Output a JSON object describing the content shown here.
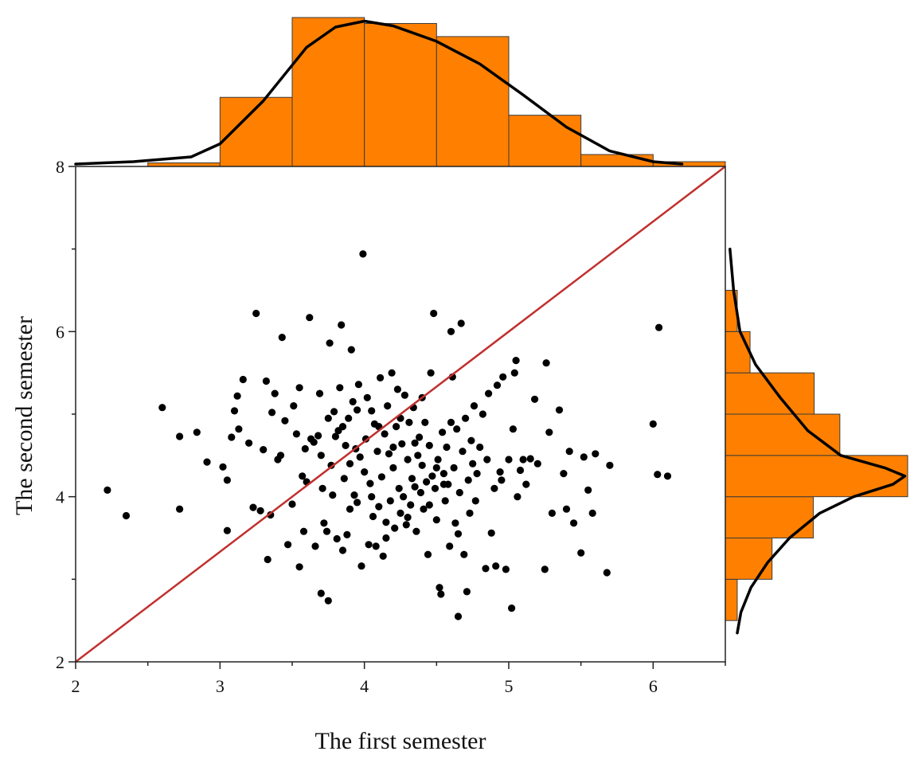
{
  "chart_data": {
    "type": "scatter",
    "title": "",
    "xlabel": "The first semester",
    "ylabel": "The second semester",
    "xlim": [
      2,
      6.5
    ],
    "ylim": [
      2,
      8
    ],
    "x_ticks": [
      2,
      3,
      4,
      5,
      6
    ],
    "y_ticks": [
      2,
      4,
      6,
      8
    ],
    "grid": false,
    "colors": {
      "points": "#000000",
      "reference_line": "#c0302e",
      "histogram_fill": "#ff8000",
      "histogram_edge": "#3a3a3a",
      "density_line": "#000000"
    },
    "reference_line": {
      "from": [
        2,
        2
      ],
      "to": [
        6.5,
        8
      ]
    },
    "points": [
      [
        2.22,
        4.08
      ],
      [
        2.35,
        3.77
      ],
      [
        2.6,
        5.08
      ],
      [
        2.72,
        4.73
      ],
      [
        2.72,
        3.85
      ],
      [
        2.84,
        4.78
      ],
      [
        2.91,
        4.42
      ],
      [
        3.02,
        4.36
      ],
      [
        3.05,
        4.2
      ],
      [
        3.05,
        3.59
      ],
      [
        3.08,
        4.72
      ],
      [
        3.1,
        5.04
      ],
      [
        3.12,
        5.22
      ],
      [
        3.13,
        4.82
      ],
      [
        3.16,
        5.42
      ],
      [
        3.2,
        4.65
      ],
      [
        3.23,
        3.87
      ],
      [
        3.25,
        6.22
      ],
      [
        3.28,
        3.83
      ],
      [
        3.3,
        4.57
      ],
      [
        3.32,
        5.4
      ],
      [
        3.33,
        3.24
      ],
      [
        3.35,
        3.78
      ],
      [
        3.36,
        5.02
      ],
      [
        3.38,
        5.25
      ],
      [
        3.4,
        4.45
      ],
      [
        3.42,
        4.5
      ],
      [
        3.43,
        5.93
      ],
      [
        3.45,
        4.92
      ],
      [
        3.47,
        3.42
      ],
      [
        3.5,
        3.91
      ],
      [
        3.51,
        5.1
      ],
      [
        3.53,
        4.76
      ],
      [
        3.55,
        5.32
      ],
      [
        3.57,
        4.25
      ],
      [
        3.58,
        3.58
      ],
      [
        3.59,
        4.58
      ],
      [
        3.6,
        4.18
      ],
      [
        3.62,
        6.17
      ],
      [
        3.63,
        4.7
      ],
      [
        3.65,
        4.66
      ],
      [
        3.66,
        3.4
      ],
      [
        3.68,
        4.74
      ],
      [
        3.69,
        5.25
      ],
      [
        3.7,
        2.83
      ],
      [
        3.71,
        4.1
      ],
      [
        3.72,
        3.68
      ],
      [
        3.74,
        3.58
      ],
      [
        3.75,
        2.74
      ],
      [
        3.76,
        5.86
      ],
      [
        3.77,
        4.38
      ],
      [
        3.78,
        4.02
      ],
      [
        3.79,
        5.03
      ],
      [
        3.8,
        4.73
      ],
      [
        3.81,
        3.49
      ],
      [
        3.82,
        4.8
      ],
      [
        3.83,
        5.32
      ],
      [
        3.84,
        6.08
      ],
      [
        3.85,
        3.35
      ],
      [
        3.86,
        4.22
      ],
      [
        3.87,
        4.62
      ],
      [
        3.88,
        3.54
      ],
      [
        3.89,
        4.95
      ],
      [
        3.9,
        4.4
      ],
      [
        3.91,
        5.78
      ],
      [
        3.92,
        5.15
      ],
      [
        3.93,
        4.02
      ],
      [
        3.94,
        4.58
      ],
      [
        3.95,
        3.93
      ],
      [
        3.96,
        5.36
      ],
      [
        3.97,
        4.48
      ],
      [
        3.98,
        3.16
      ],
      [
        3.99,
        6.94
      ],
      [
        4.0,
        4.3
      ],
      [
        4.01,
        4.7
      ],
      [
        4.02,
        5.2
      ],
      [
        4.03,
        3.42
      ],
      [
        4.04,
        4.16
      ],
      [
        4.05,
        5.04
      ],
      [
        4.06,
        3.76
      ],
      [
        4.07,
        4.88
      ],
      [
        4.08,
        3.4
      ],
      [
        4.09,
        4.55
      ],
      [
        4.1,
        3.88
      ],
      [
        4.11,
        5.44
      ],
      [
        4.12,
        4.24
      ],
      [
        4.13,
        3.28
      ],
      [
        4.14,
        4.76
      ],
      [
        4.15,
        3.69
      ],
      [
        4.16,
        5.1
      ],
      [
        4.17,
        4.52
      ],
      [
        4.18,
        3.95
      ],
      [
        4.19,
        5.5
      ],
      [
        4.2,
        4.35
      ],
      [
        4.21,
        3.62
      ],
      [
        4.22,
        4.85
      ],
      [
        4.23,
        5.3
      ],
      [
        4.24,
        4.1
      ],
      [
        4.25,
        3.8
      ],
      [
        4.26,
        4.64
      ],
      [
        4.27,
        4.0
      ],
      [
        4.28,
        5.23
      ],
      [
        4.29,
        3.66
      ],
      [
        4.3,
        4.45
      ],
      [
        4.31,
        4.9
      ],
      [
        4.32,
        3.9
      ],
      [
        4.33,
        4.22
      ],
      [
        4.34,
        5.08
      ],
      [
        4.35,
        4.12
      ],
      [
        4.36,
        3.58
      ],
      [
        4.37,
        4.5
      ],
      [
        4.38,
        4.72
      ],
      [
        4.39,
        4.05
      ],
      [
        4.4,
        4.38
      ],
      [
        4.41,
        3.85
      ],
      [
        4.42,
        4.9
      ],
      [
        4.43,
        4.18
      ],
      [
        4.44,
        3.3
      ],
      [
        4.45,
        4.62
      ],
      [
        4.46,
        5.5
      ],
      [
        4.47,
        4.25
      ],
      [
        4.48,
        6.22
      ],
      [
        4.49,
        4.1
      ],
      [
        4.5,
        3.72
      ],
      [
        4.51,
        4.45
      ],
      [
        4.52,
        2.9
      ],
      [
        4.53,
        2.82
      ],
      [
        4.54,
        4.78
      ],
      [
        4.55,
        4.28
      ],
      [
        4.56,
        3.95
      ],
      [
        4.57,
        4.6
      ],
      [
        4.58,
        4.15
      ],
      [
        4.59,
        3.4
      ],
      [
        4.6,
        6.0
      ],
      [
        4.61,
        5.45
      ],
      [
        4.62,
        4.35
      ],
      [
        4.63,
        3.68
      ],
      [
        4.64,
        4.82
      ],
      [
        4.65,
        2.55
      ],
      [
        4.66,
        4.05
      ],
      [
        4.67,
        6.1
      ],
      [
        4.68,
        4.55
      ],
      [
        4.69,
        3.3
      ],
      [
        4.7,
        4.95
      ],
      [
        4.71,
        2.85
      ],
      [
        4.72,
        4.2
      ],
      [
        4.73,
        3.8
      ],
      [
        4.74,
        4.68
      ],
      [
        4.75,
        4.4
      ],
      [
        4.76,
        5.1
      ],
      [
        4.77,
        3.95
      ],
      [
        4.78,
        4.28
      ],
      [
        4.8,
        4.6
      ],
      [
        4.82,
        5.0
      ],
      [
        4.84,
        3.13
      ],
      [
        4.85,
        4.45
      ],
      [
        4.86,
        5.25
      ],
      [
        4.88,
        3.56
      ],
      [
        4.9,
        4.1
      ],
      [
        4.91,
        3.16
      ],
      [
        4.92,
        5.35
      ],
      [
        4.94,
        4.3
      ],
      [
        4.96,
        5.45
      ],
      [
        4.98,
        3.12
      ],
      [
        5.0,
        4.45
      ],
      [
        5.02,
        2.65
      ],
      [
        5.03,
        4.82
      ],
      [
        5.04,
        5.5
      ],
      [
        5.05,
        5.65
      ],
      [
        5.06,
        4.0
      ],
      [
        5.08,
        4.32
      ],
      [
        5.1,
        4.45
      ],
      [
        5.12,
        4.15
      ],
      [
        5.15,
        4.46
      ],
      [
        5.18,
        5.18
      ],
      [
        5.2,
        4.4
      ],
      [
        5.25,
        3.12
      ],
      [
        5.26,
        5.62
      ],
      [
        5.28,
        4.78
      ],
      [
        5.3,
        3.8
      ],
      [
        5.35,
        5.05
      ],
      [
        5.38,
        4.28
      ],
      [
        5.4,
        3.85
      ],
      [
        5.42,
        4.55
      ],
      [
        5.45,
        3.68
      ],
      [
        5.5,
        3.32
      ],
      [
        5.52,
        4.48
      ],
      [
        5.55,
        4.08
      ],
      [
        5.58,
        3.8
      ],
      [
        5.6,
        4.52
      ],
      [
        5.68,
        3.08
      ],
      [
        5.7,
        4.38
      ],
      [
        6.0,
        4.88
      ],
      [
        6.03,
        4.27
      ],
      [
        6.04,
        6.05
      ],
      [
        6.1,
        4.25
      ],
      [
        3.55,
        3.15
      ],
      [
        3.7,
        4.5
      ],
      [
        4.05,
        4.0
      ],
      [
        4.15,
        3.5
      ],
      [
        4.25,
        4.95
      ],
      [
        4.35,
        4.65
      ],
      [
        4.45,
        3.9
      ],
      [
        4.55,
        4.15
      ],
      [
        3.85,
        4.85
      ],
      [
        4.95,
        4.2
      ],
      [
        3.95,
        5.05
      ],
      [
        4.2,
        4.6
      ],
      [
        4.4,
        5.2
      ],
      [
        4.6,
        4.9
      ],
      [
        3.75,
        4.95
      ],
      [
        3.9,
        3.85
      ],
      [
        4.1,
        4.85
      ],
      [
        4.3,
        3.75
      ],
      [
        4.5,
        4.35
      ],
      [
        4.65,
        3.55
      ]
    ],
    "top_histogram": {
      "bins": [
        [
          2.5,
          3.0,
          0.3
        ],
        [
          3.0,
          3.5,
          5.8
        ],
        [
          3.5,
          4.0,
          12.5
        ],
        [
          4.0,
          4.5,
          12.0
        ],
        [
          4.5,
          5.0,
          10.9
        ],
        [
          5.0,
          5.5,
          4.3
        ],
        [
          5.5,
          6.0,
          1.0
        ],
        [
          6.0,
          6.5,
          0.4
        ]
      ],
      "density": [
        [
          2.0,
          0.2
        ],
        [
          2.4,
          0.4
        ],
        [
          2.8,
          0.8
        ],
        [
          3.0,
          1.9
        ],
        [
          3.3,
          5.5
        ],
        [
          3.6,
          10.0
        ],
        [
          3.8,
          11.7
        ],
        [
          4.0,
          12.2
        ],
        [
          4.2,
          11.8
        ],
        [
          4.5,
          10.5
        ],
        [
          4.8,
          8.6
        ],
        [
          5.1,
          6.0
        ],
        [
          5.4,
          3.3
        ],
        [
          5.7,
          1.3
        ],
        [
          6.0,
          0.4
        ],
        [
          6.2,
          0.2
        ]
      ]
    },
    "right_histogram": {
      "bins": [
        [
          2.5,
          3.0,
          1.3
        ],
        [
          3.0,
          3.5,
          5.1
        ],
        [
          3.5,
          4.0,
          9.6
        ],
        [
          4.0,
          4.5,
          19.9
        ],
        [
          4.5,
          5.0,
          12.5
        ],
        [
          5.0,
          5.5,
          9.7
        ],
        [
          5.5,
          6.0,
          2.7
        ],
        [
          6.0,
          6.5,
          1.3
        ]
      ],
      "density": [
        [
          2.35,
          1.3
        ],
        [
          2.6,
          1.7
        ],
        [
          2.9,
          2.8
        ],
        [
          3.2,
          4.6
        ],
        [
          3.5,
          7.0
        ],
        [
          3.8,
          10.3
        ],
        [
          4.0,
          14.0
        ],
        [
          4.15,
          18.3
        ],
        [
          4.25,
          19.6
        ],
        [
          4.35,
          17.4
        ],
        [
          4.5,
          12.6
        ],
        [
          4.8,
          9.0
        ],
        [
          5.2,
          6.0
        ],
        [
          5.6,
          3.3
        ],
        [
          6.0,
          1.6
        ],
        [
          6.5,
          0.9
        ],
        [
          7.0,
          0.5
        ]
      ]
    }
  }
}
